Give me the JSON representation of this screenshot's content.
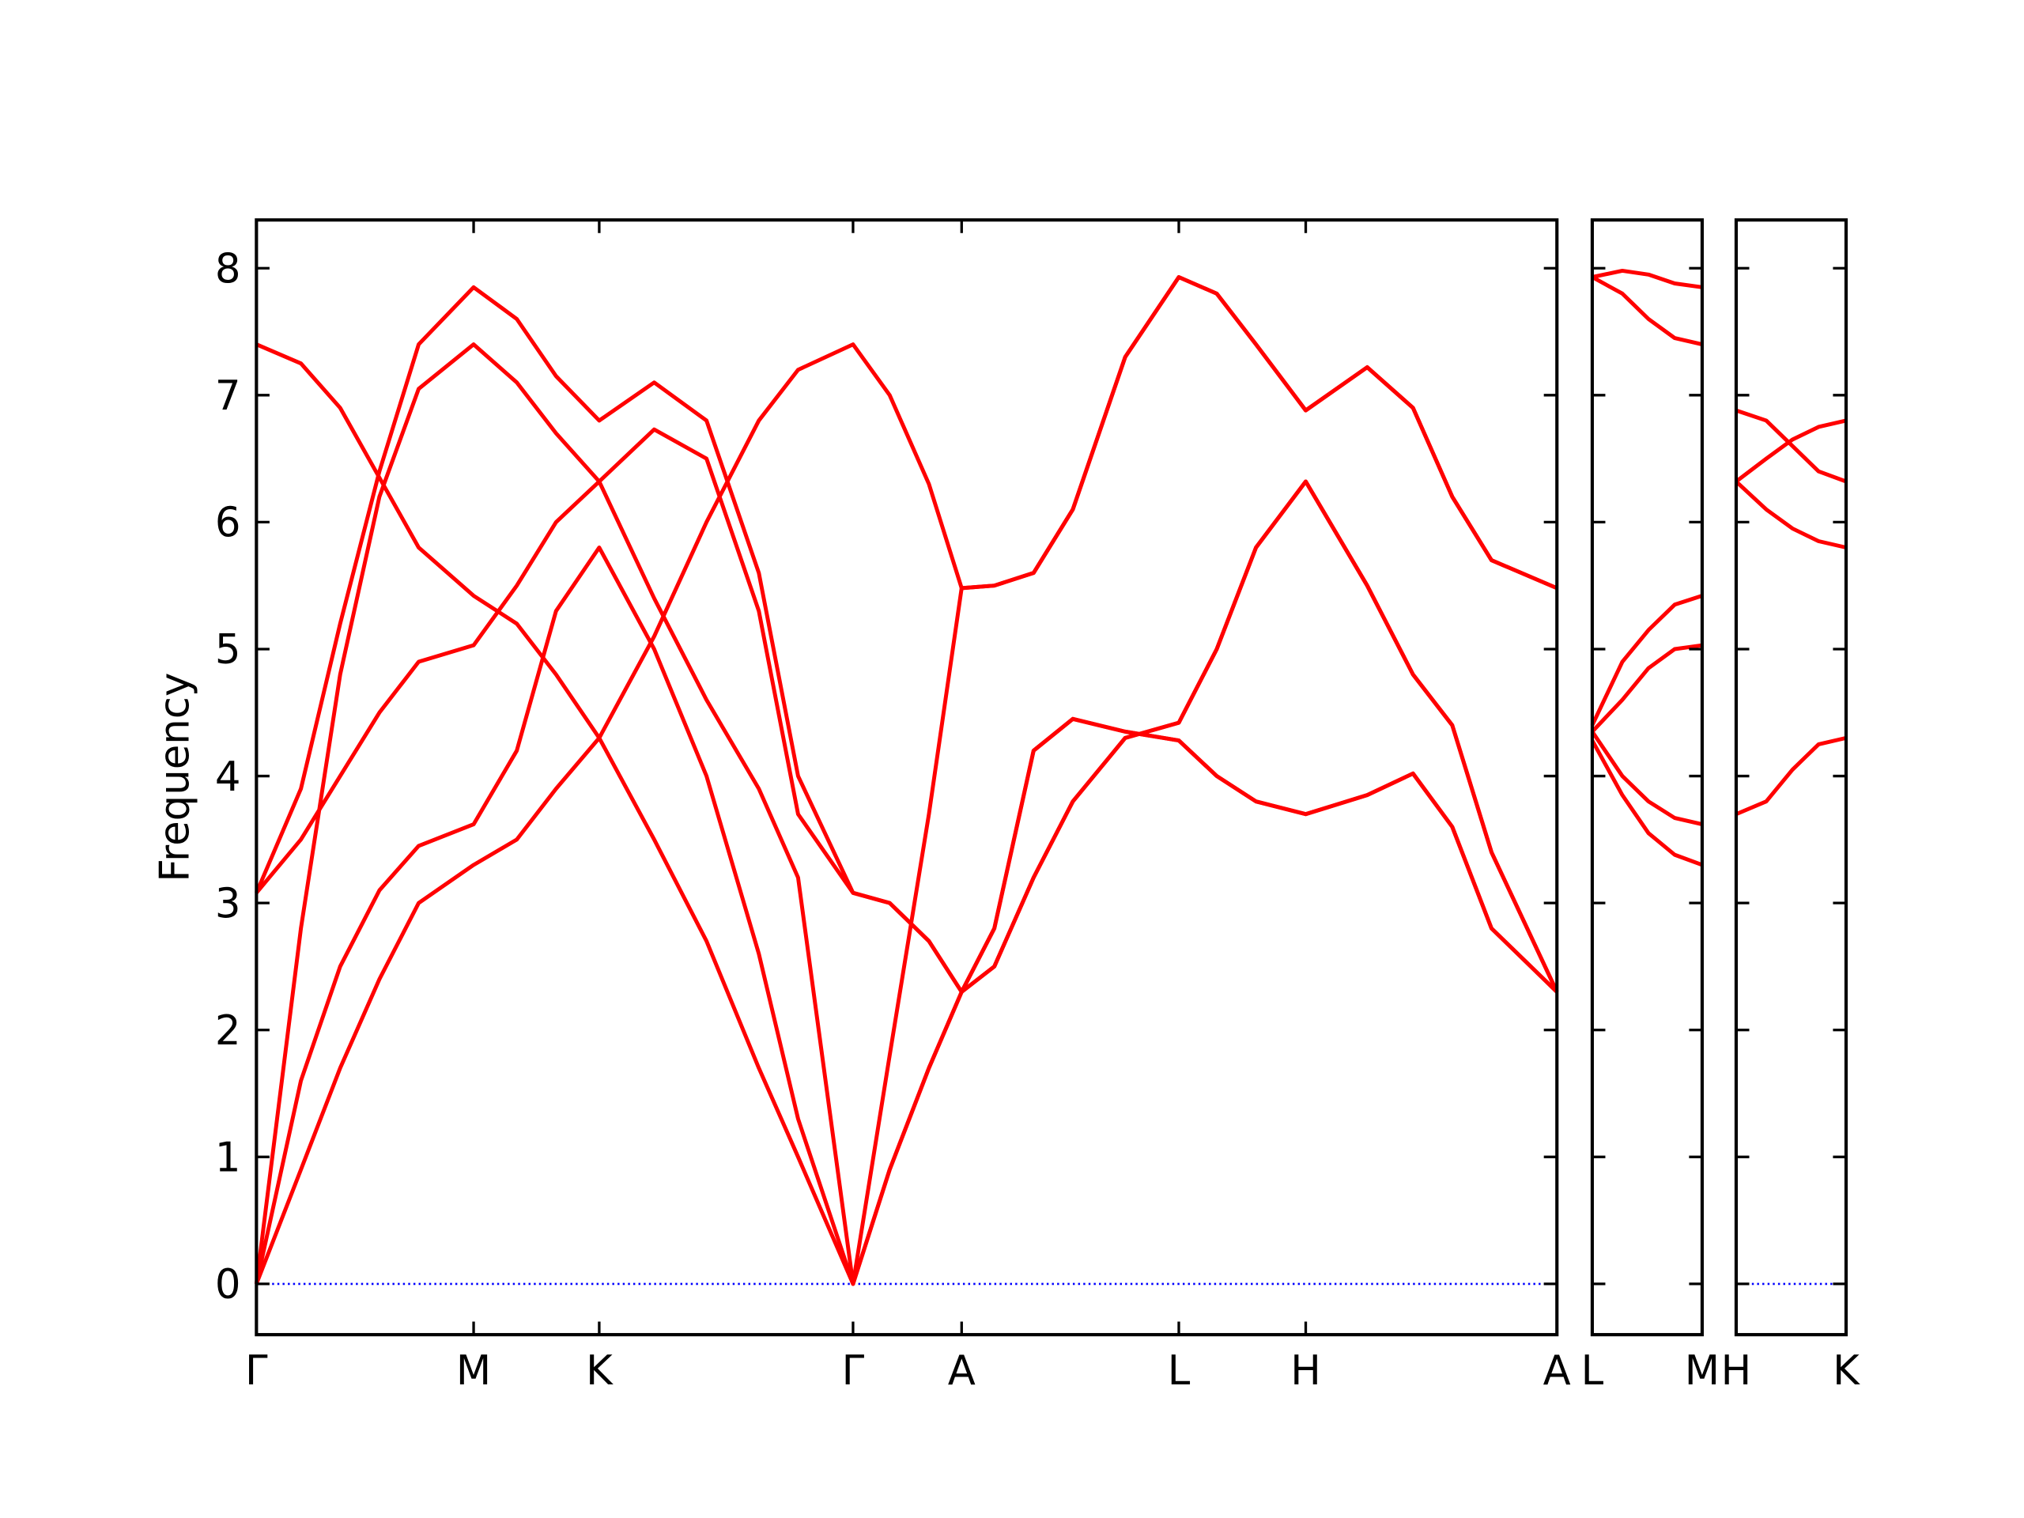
{
  "chart_data": [
    {
      "type": "line",
      "ylabel": "Frequency",
      "xlim": [
        0,
        9.94
      ],
      "ylim": [
        -0.4,
        8.38
      ],
      "xticks": [
        {
          "value": 0,
          "label": "Γ"
        },
        {
          "value": 1.66,
          "label": "M"
        },
        {
          "value": 2.62,
          "label": "K"
        },
        {
          "value": 4.56,
          "label": "Γ"
        },
        {
          "value": 5.39,
          "label": "A"
        },
        {
          "value": 7.05,
          "label": "L"
        },
        {
          "value": 8.02,
          "label": "H"
        },
        {
          "value": 9.94,
          "label": "A"
        }
      ],
      "yticks": [
        0,
        1,
        2,
        3,
        4,
        5,
        6,
        7,
        8
      ],
      "ytick_labels": true,
      "hline": 0,
      "hline_color": "#0000ff",
      "x": [
        0,
        0.34,
        0.64,
        0.94,
        1.24,
        1.66,
        1.99,
        2.29,
        2.62,
        3.04,
        3.44,
        3.84,
        4.14,
        4.56,
        4.84,
        5.14,
        5.39,
        5.64,
        5.94,
        6.24,
        6.64,
        7.05,
        7.34,
        7.64,
        8.02,
        8.49,
        8.84,
        9.14,
        9.44,
        9.94
      ],
      "series": [
        {
          "color": "#ff0000",
          "values": [
            0,
            0.9,
            1.7,
            2.4,
            3.0,
            3.3,
            3.5,
            3.9,
            4.3,
            5.1,
            6.0,
            6.8,
            7.2,
            7.4,
            7.0,
            6.3,
            5.48,
            5.5,
            5.6,
            6.1,
            7.3,
            7.93,
            7.8,
            7.4,
            6.88,
            7.22,
            6.9,
            6.2,
            5.7,
            5.48
          ]
        },
        {
          "color": "#ff0000",
          "values": [
            0,
            1.6,
            2.5,
            3.1,
            3.45,
            3.62,
            4.2,
            5.3,
            5.8,
            5.0,
            4.0,
            2.6,
            1.3,
            0,
            0.9,
            1.7,
            2.3,
            2.5,
            3.2,
            3.8,
            4.3,
            4.42,
            5.0,
            5.8,
            6.32,
            5.5,
            4.8,
            4.4,
            3.4,
            2.3
          ]
        },
        {
          "color": "#ff0000",
          "values": [
            0,
            2.8,
            4.8,
            6.2,
            7.05,
            7.4,
            7.1,
            6.7,
            6.32,
            6.73,
            6.5,
            5.3,
            3.7,
            3.08,
            3.0,
            2.7,
            2.3,
            2.8,
            4.2,
            4.45,
            4.35,
            4.28,
            4.0,
            3.8,
            3.7,
            3.85,
            4.02,
            3.6,
            2.8,
            2.3
          ]
        },
        {
          "color": "#ff0000",
          "values": [
            3.08,
            3.9,
            5.2,
            6.4,
            7.4,
            7.85,
            7.6,
            7.15,
            6.8,
            7.1,
            6.8,
            5.6,
            4.0,
            3.08,
            3.0,
            2.7,
            2.3,
            2.5,
            3.2,
            3.8,
            4.3,
            4.42,
            5.0,
            5.8,
            6.32,
            5.5,
            4.8,
            4.4,
            3.4,
            2.3
          ]
        },
        {
          "color": "#ff0000",
          "values": [
            3.08,
            3.5,
            4.0,
            4.5,
            4.9,
            5.03,
            5.5,
            6.0,
            6.32,
            5.4,
            4.6,
            3.9,
            3.2,
            0,
            0.9,
            1.7,
            2.3,
            2.8,
            4.2,
            4.45,
            4.35,
            4.28,
            4.0,
            3.8,
            3.7,
            3.85,
            4.02,
            3.6,
            2.8,
            2.3
          ]
        },
        {
          "color": "#ff0000",
          "values": [
            7.4,
            7.25,
            6.9,
            6.35,
            5.8,
            5.42,
            5.2,
            4.8,
            4.3,
            3.5,
            2.7,
            1.7,
            1.0,
            0,
            1.8,
            3.7,
            5.48,
            5.5,
            5.6,
            6.1,
            7.3,
            7.93,
            7.8,
            7.4,
            6.88,
            7.22,
            6.9,
            6.2,
            5.7,
            5.48
          ]
        }
      ]
    },
    {
      "type": "line",
      "xlim": [
        0,
        0.84
      ],
      "ylim": [
        -0.4,
        8.38
      ],
      "xticks": [
        {
          "value": 0,
          "label": "L"
        },
        {
          "value": 0.84,
          "label": "M"
        }
      ],
      "yticks": [
        0,
        1,
        2,
        3,
        4,
        5,
        6,
        7,
        8
      ],
      "ytick_labels": false,
      "x": [
        0,
        0.23,
        0.43,
        0.63,
        0.84
      ],
      "series": [
        {
          "color": "#ff0000",
          "values": [
            7.93,
            7.98,
            7.95,
            7.88,
            7.85
          ]
        },
        {
          "color": "#ff0000",
          "values": [
            7.93,
            7.8,
            7.6,
            7.45,
            7.4
          ]
        },
        {
          "color": "#ff0000",
          "values": [
            4.4,
            4.9,
            5.15,
            5.35,
            5.42
          ]
        },
        {
          "color": "#ff0000",
          "values": [
            4.35,
            4.6,
            4.85,
            5.0,
            5.03
          ]
        },
        {
          "color": "#ff0000",
          "values": [
            4.35,
            4.0,
            3.8,
            3.67,
            3.62
          ]
        },
        {
          "color": "#ff0000",
          "values": [
            4.28,
            3.85,
            3.55,
            3.38,
            3.3
          ]
        }
      ]
    },
    {
      "type": "line",
      "xlim": [
        0,
        0.84
      ],
      "ylim": [
        -0.4,
        8.38
      ],
      "xticks": [
        {
          "value": 0,
          "label": "H"
        },
        {
          "value": 0.84,
          "label": "K"
        }
      ],
      "yticks": [
        0,
        1,
        2,
        3,
        4,
        5,
        6,
        7,
        8
      ],
      "ytick_labels": false,
      "hline": 0,
      "hline_color": "#0000ff",
      "x": [
        0,
        0.23,
        0.43,
        0.63,
        0.84
      ],
      "series": [
        {
          "color": "#ff0000",
          "values": [
            6.88,
            6.8,
            6.6,
            6.4,
            6.32
          ]
        },
        {
          "color": "#ff0000",
          "values": [
            6.32,
            6.5,
            6.65,
            6.75,
            6.8
          ]
        },
        {
          "color": "#ff0000",
          "values": [
            6.32,
            6.1,
            5.95,
            5.85,
            5.8
          ]
        },
        {
          "color": "#ff0000",
          "values": [
            3.7,
            3.8,
            4.05,
            4.25,
            4.3
          ]
        }
      ]
    }
  ]
}
